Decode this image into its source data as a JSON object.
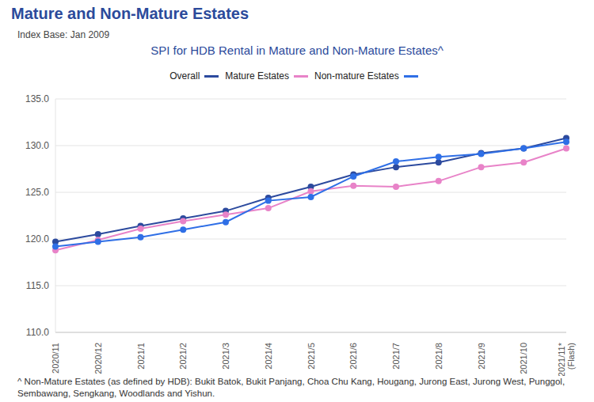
{
  "chart_data": {
    "type": "line",
    "title": "Mature and Non-Mature Estates",
    "subtitle": "SPI for HDB Rental in Mature and Non-Mature Estates^",
    "annotations": [
      "Index Base: Jan 2009",
      "^ Non-Mature Estates (as defined by HDB): Bukit Batok, Bukit Panjang, Choa Chu Kang, Hougang, Jurong East, Jurong West, Punggol, Sembawang, Sengkang, Woodlands and Yishun."
    ],
    "categories": [
      "2020/11",
      "2020/12",
      "2021/1",
      "2021/2",
      "2021/3",
      "2021/4",
      "2021/5",
      "2021/6",
      "2021/7",
      "2021/8",
      "2021/9",
      "2021/10",
      "2021/11* (Flash)"
    ],
    "series": [
      {
        "name": "Overall",
        "color": "#2c4a9e",
        "marker": "circle",
        "values": [
          119.7,
          120.5,
          121.4,
          122.2,
          123.0,
          124.4,
          125.6,
          126.9,
          127.7,
          128.2,
          129.2,
          129.7,
          130.8
        ]
      },
      {
        "name": "Mature Estates",
        "color": "#e883c8",
        "marker": "circle",
        "values": [
          118.8,
          119.9,
          121.1,
          121.9,
          122.6,
          123.3,
          125.1,
          125.7,
          125.6,
          126.2,
          127.7,
          128.2,
          129.7
        ]
      },
      {
        "name": "Non-mature Estates",
        "color": "#2f6fe6",
        "marker": "circle",
        "values": [
          119.2,
          119.7,
          120.2,
          121.0,
          121.8,
          124.1,
          124.5,
          126.7,
          128.3,
          128.8,
          129.1,
          129.7,
          130.4
        ]
      }
    ],
    "ylim": [
      110,
      135
    ],
    "yticks": [
      {
        "value": 110,
        "label": "110.0"
      },
      {
        "value": 115,
        "label": "115.0"
      },
      {
        "value": 120,
        "label": "120.0"
      },
      {
        "value": 125,
        "label": "125.0"
      },
      {
        "value": 130,
        "label": "130.0"
      },
      {
        "value": 135,
        "label": "135.0"
      }
    ],
    "grid": true
  }
}
